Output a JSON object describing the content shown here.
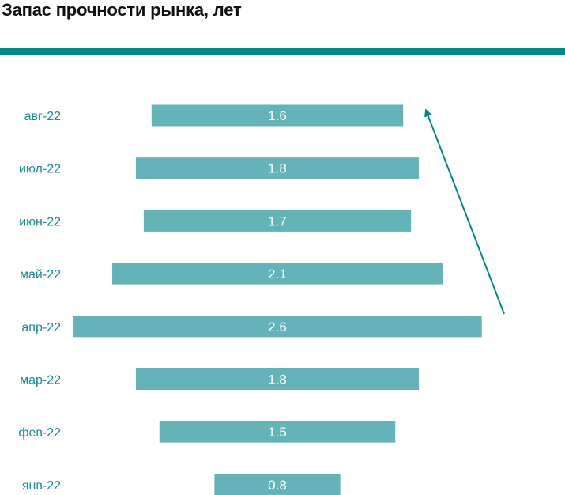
{
  "title": "Запас прочности рынка, лет",
  "colors": {
    "accent": "#00878A",
    "bar": "#63B3B8",
    "category_text": "#1A8A8E",
    "value_text": "#FFFFFF",
    "title_text": "#111111"
  },
  "chart_data": {
    "type": "bar",
    "orientation": "horizontal",
    "alignment": "centered",
    "title": "Запас прочности рынка, лет",
    "categories": [
      "авг-22",
      "июл-22",
      "июн-22",
      "май-22",
      "апр-22",
      "мар-22",
      "фев-22",
      "янв-22"
    ],
    "values": [
      1.6,
      1.8,
      1.7,
      2.1,
      2.6,
      1.8,
      1.5,
      0.8
    ],
    "value_labels": [
      "1.6",
      "1.8",
      "1.7",
      "2.1",
      "2.6",
      "1.8",
      "1.5",
      "0.8"
    ],
    "xlabel": "",
    "ylabel": "",
    "grid": false,
    "legend": "none",
    "annotations": [
      {
        "type": "arrow",
        "direction": "up",
        "description": "trend arrow from апр-22 towards авг-22"
      }
    ]
  }
}
